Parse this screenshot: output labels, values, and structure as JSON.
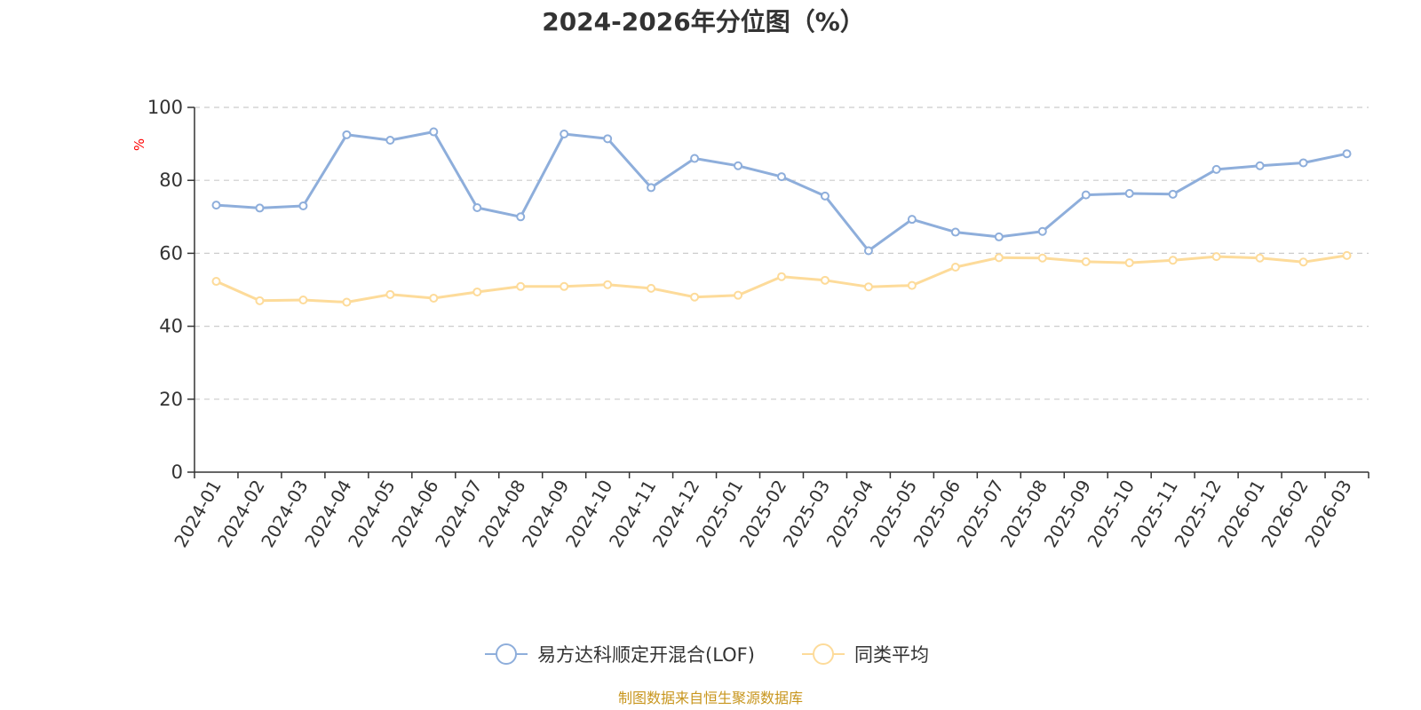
{
  "chart_data": {
    "type": "line",
    "title": "2024-2026年分位图（%）",
    "ylabel": "%",
    "xlabel": "",
    "ylim": [
      0,
      100
    ],
    "yticks": [
      0,
      20,
      40,
      60,
      80,
      100
    ],
    "grid": true,
    "legend_position": "bottom-center",
    "categories": [
      "2024-01",
      "2024-02",
      "2024-03",
      "2024-04",
      "2024-05",
      "2024-06",
      "2024-07",
      "2024-08",
      "2024-09",
      "2024-10",
      "2024-11",
      "2024-12",
      "2025-01",
      "2025-02",
      "2025-03",
      "2025-04",
      "2025-05",
      "2025-06",
      "2025-07",
      "2025-08",
      "2025-09",
      "2025-10",
      "2025-11",
      "2025-12",
      "2026-01",
      "2026-02",
      "2026-03"
    ],
    "series": [
      {
        "name": "易方达科顺定开混合(LOF)",
        "color": "#8eaedb",
        "values": [
          73.2,
          72.4,
          73.0,
          92.5,
          91.0,
          93.3,
          72.5,
          70.0,
          92.7,
          91.4,
          78.0,
          86.0,
          84.0,
          81.0,
          75.7,
          60.7,
          69.3,
          65.8,
          64.5,
          66.0,
          76.0,
          76.4,
          76.2,
          83.0,
          84.0,
          84.8,
          87.3
        ]
      },
      {
        "name": "同类平均",
        "color": "#fddb9a",
        "values": [
          52.3,
          47.0,
          47.2,
          46.6,
          48.7,
          47.7,
          49.4,
          50.9,
          50.9,
          51.4,
          50.4,
          48.0,
          48.5,
          53.6,
          52.6,
          50.8,
          51.2,
          56.2,
          58.8,
          58.7,
          57.7,
          57.4,
          58.1,
          59.1,
          58.7,
          57.6,
          59.4
        ]
      }
    ]
  },
  "source_text": "制图数据来自恒生聚源数据库",
  "colors": {
    "axis": "#333333",
    "grid": "#cccccc",
    "unit": "#ff0000",
    "source": "#c8961e"
  }
}
